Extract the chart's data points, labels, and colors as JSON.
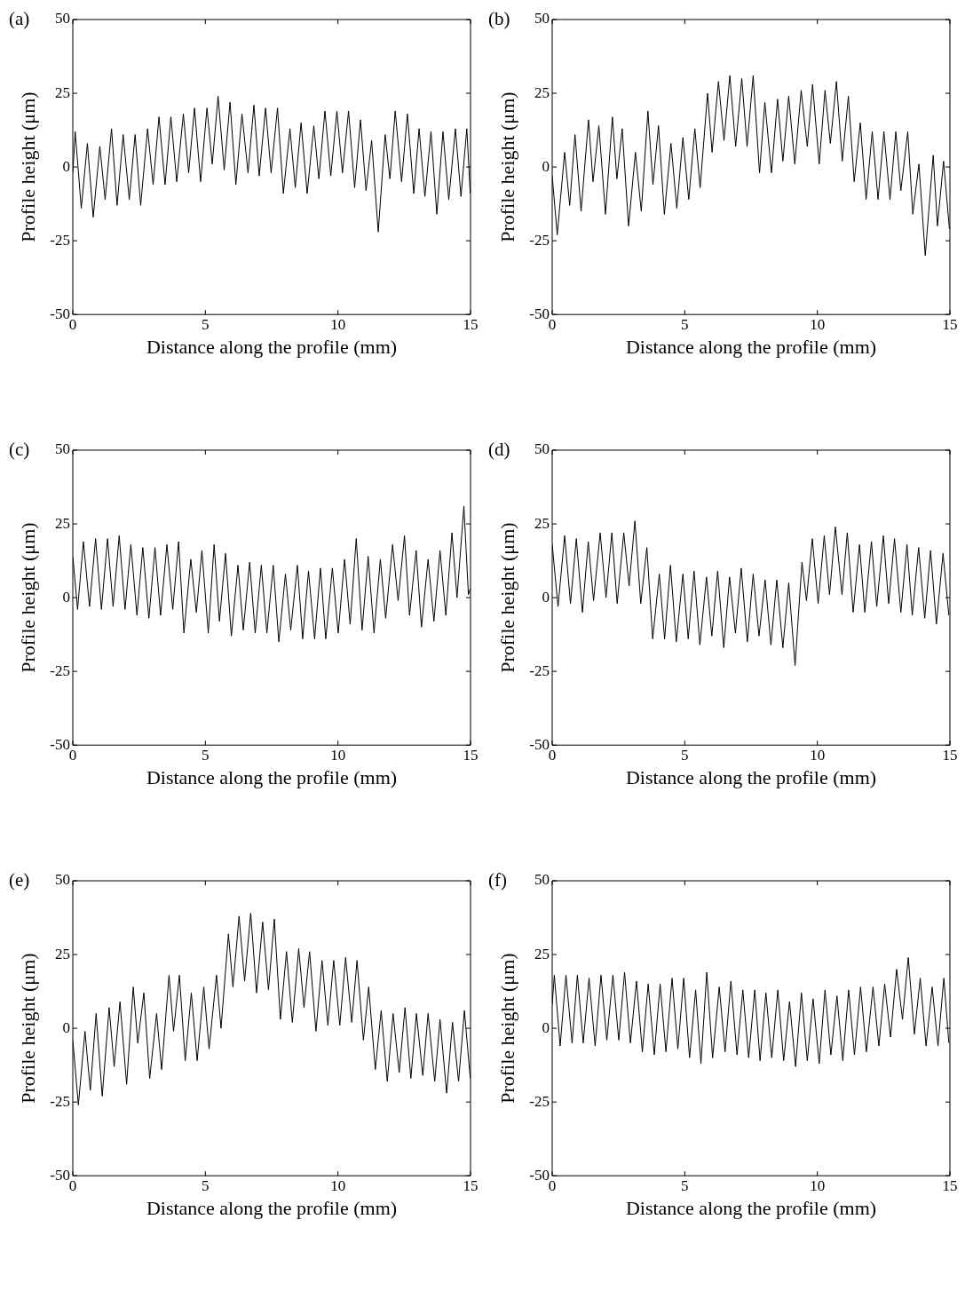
{
  "chart_data": [
    {
      "type": "line",
      "title": "(a)",
      "xlabel": "Distance along the profile (mm)",
      "ylabel": "Profile height (μm)",
      "color": "#000000",
      "xlim": [
        0,
        15
      ],
      "ylim": [
        -50,
        50
      ],
      "xticks": [
        0,
        5,
        10,
        15
      ],
      "yticks": [
        -50,
        -25,
        0,
        25,
        50
      ],
      "x": [
        0,
        0.09,
        0.32,
        0.55,
        0.77,
        1.02,
        1.22,
        1.46,
        1.67,
        1.9,
        2.13,
        2.35,
        2.56,
        2.82,
        3.03,
        3.25,
        3.48,
        3.7,
        3.92,
        4.17,
        4.37,
        4.59,
        4.82,
        5.06,
        5.26,
        5.48,
        5.71,
        5.93,
        6.15,
        6.38,
        6.61,
        6.83,
        7.03,
        7.27,
        7.48,
        7.72,
        7.94,
        8.19,
        8.39,
        8.61,
        8.84,
        9.09,
        9.28,
        9.51,
        9.73,
        9.96,
        10.17,
        10.4,
        10.63,
        10.85,
        11.06,
        11.27,
        11.52,
        11.78,
        11.96,
        12.16,
        12.4,
        12.62,
        12.86,
        13.06,
        13.28,
        13.51,
        13.73,
        13.96,
        14.18,
        14.43,
        14.64,
        14.86,
        14.99
      ],
      "values": [
        -2,
        12,
        -14,
        8,
        -17,
        7,
        -11,
        13,
        -13,
        11,
        -11,
        11,
        -13,
        13,
        -6,
        17,
        -6,
        17,
        -5,
        18,
        -2,
        20,
        -5,
        20,
        1,
        24,
        -1,
        22,
        -6,
        18,
        -2,
        21,
        -3,
        20,
        -2,
        20,
        -9,
        13,
        -7,
        15,
        -9,
        14,
        -4,
        19,
        -3,
        19,
        -2,
        19,
        -7,
        16,
        -8,
        9,
        -22,
        11,
        -4,
        19,
        -5,
        18,
        -9,
        13,
        -10,
        12,
        -16,
        12,
        -11,
        13,
        -10,
        13,
        -9
      ]
    },
    {
      "type": "line",
      "title": "(b)",
      "xlabel": "Distance along the profile (mm)",
      "ylabel": "Profile height (μm)",
      "color": "#000000",
      "xlim": [
        0,
        15
      ],
      "ylim": [
        -50,
        50
      ],
      "xticks": [
        0,
        5,
        10,
        15
      ],
      "yticks": [
        -50,
        -25,
        0,
        25,
        50
      ],
      "x": [
        0,
        0.19,
        0.47,
        0.66,
        0.86,
        1.09,
        1.37,
        1.54,
        1.76,
        2.01,
        2.27,
        2.44,
        2.64,
        2.88,
        3.14,
        3.36,
        3.61,
        3.8,
        4.01,
        4.23,
        4.48,
        4.7,
        4.93,
        5.15,
        5.38,
        5.58,
        5.86,
        6.03,
        6.27,
        6.48,
        6.7,
        6.92,
        7.15,
        7.35,
        7.58,
        7.82,
        8.02,
        8.27,
        8.5,
        8.7,
        8.92,
        9.15,
        9.39,
        9.62,
        9.82,
        10.07,
        10.29,
        10.49,
        10.72,
        10.94,
        11.17,
        11.39,
        11.62,
        11.84,
        12.07,
        12.29,
        12.51,
        12.74,
        12.96,
        13.15,
        13.41,
        13.6,
        13.83,
        14.07,
        14.37,
        14.53,
        14.76,
        14.98
      ],
      "values": [
        -3,
        -23,
        5,
        -13,
        11,
        -15,
        16,
        -5,
        14,
        -16,
        17,
        -4,
        13,
        -20,
        5,
        -15,
        19,
        -6,
        14,
        -16,
        8,
        -14,
        10,
        -11,
        13,
        -7,
        25,
        5,
        29,
        9,
        31,
        7,
        30,
        7,
        31,
        -2,
        22,
        -2,
        23,
        2,
        24,
        1,
        26,
        7,
        28,
        1,
        26,
        8,
        29,
        2,
        24,
        -5,
        15,
        -11,
        12,
        -11,
        12,
        -11,
        12,
        -8,
        12,
        -16,
        1,
        -30,
        4,
        -20,
        2,
        -21
      ]
    },
    {
      "type": "line",
      "title": "(c)",
      "xlabel": "Distance along the profile (mm)",
      "ylabel": "Profile height (μm)",
      "color": "#000000",
      "xlim": [
        0,
        15
      ],
      "ylim": [
        -50,
        50
      ],
      "xticks": [
        0,
        5,
        10,
        15
      ],
      "yticks": [
        -50,
        -25,
        0,
        25,
        50
      ],
      "x": [
        0,
        0.18,
        0.4,
        0.63,
        0.86,
        1.08,
        1.31,
        1.52,
        1.75,
        1.97,
        2.19,
        2.42,
        2.64,
        2.87,
        3.1,
        3.31,
        3.55,
        3.77,
        3.99,
        4.19,
        4.45,
        4.66,
        4.87,
        5.11,
        5.33,
        5.53,
        5.76,
        5.98,
        6.23,
        6.43,
        6.67,
        6.88,
        7.11,
        7.32,
        7.56,
        7.77,
        8.02,
        8.22,
        8.47,
        8.67,
        8.89,
        9.12,
        9.34,
        9.54,
        9.79,
        10.01,
        10.25,
        10.46,
        10.69,
        10.91,
        11.14,
        11.36,
        11.6,
        11.8,
        12.06,
        12.27,
        12.51,
        12.7,
        12.95,
        13.15,
        13.4,
        13.62,
        13.85,
        14.07,
        14.3,
        14.49,
        14.75,
        14.92,
        14.99
      ],
      "values": [
        14,
        -4,
        19,
        -3,
        20,
        -4,
        20,
        -3,
        21,
        -4,
        18,
        -6,
        17,
        -7,
        17,
        -6,
        18,
        -4,
        19,
        -12,
        13,
        -5,
        16,
        -12,
        18,
        -8,
        15,
        -13,
        11,
        -11,
        12,
        -12,
        11,
        -12,
        11,
        -15,
        8,
        -11,
        11,
        -14,
        9,
        -14,
        10,
        -14,
        10,
        -12,
        13,
        -9,
        20,
        -11,
        14,
        -12,
        13,
        -7,
        18,
        -1,
        21,
        -6,
        16,
        -10,
        13,
        -8,
        16,
        -6,
        22,
        0,
        31,
        1,
        3
      ]
    },
    {
      "type": "line",
      "title": "(d)",
      "xlabel": "Distance along the profile (mm)",
      "ylabel": "Profile height (μm)",
      "color": "#000000",
      "xlim": [
        0,
        15
      ],
      "ylim": [
        -50,
        50
      ],
      "xticks": [
        0,
        5,
        10,
        15
      ],
      "yticks": [
        -50,
        -25,
        0,
        25,
        50
      ],
      "x": [
        0,
        0.22,
        0.47,
        0.69,
        0.91,
        1.14,
        1.36,
        1.56,
        1.81,
        2.03,
        2.25,
        2.45,
        2.7,
        2.9,
        3.12,
        3.34,
        3.57,
        3.79,
        4.04,
        4.24,
        4.46,
        4.68,
        4.93,
        5.13,
        5.35,
        5.57,
        5.82,
        6.02,
        6.24,
        6.47,
        6.69,
        6.91,
        7.13,
        7.36,
        7.58,
        7.8,
        8.03,
        8.25,
        8.47,
        8.7,
        8.92,
        9.16,
        9.42,
        9.59,
        9.81,
        10.03,
        10.26,
        10.46,
        10.68,
        10.93,
        11.13,
        11.35,
        11.59,
        11.79,
        12.04,
        12.24,
        12.49,
        12.69,
        12.91,
        13.15,
        13.38,
        13.58,
        13.82,
        14.05,
        14.27,
        14.49,
        14.74,
        14.96
      ],
      "values": [
        18,
        -3,
        21,
        -2,
        20,
        -5,
        19,
        -1,
        22,
        0,
        22,
        -2,
        22,
        4,
        26,
        -2,
        17,
        -14,
        8,
        -14,
        11,
        -15,
        8,
        -14,
        9,
        -16,
        7,
        -13,
        9,
        -17,
        7,
        -12,
        10,
        -15,
        8,
        -13,
        6,
        -16,
        6,
        -17,
        5,
        -23,
        12,
        -1,
        20,
        -2,
        21,
        1,
        24,
        1,
        22,
        -5,
        18,
        -5,
        19,
        -3,
        21,
        -2,
        20,
        -5,
        18,
        -6,
        17,
        -7,
        16,
        -9,
        15,
        -6
      ]
    },
    {
      "type": "line",
      "title": "(e)",
      "xlabel": "Distance along the profile (mm)",
      "ylabel": "Profile height (μm)",
      "color": "#000000",
      "xlim": [
        0,
        15
      ],
      "ylim": [
        -50,
        50
      ],
      "xticks": [
        0,
        5,
        10,
        15
      ],
      "yticks": [
        -50,
        -25,
        0,
        25,
        50
      ],
      "x": [
        0,
        0.21,
        0.46,
        0.66,
        0.88,
        1.11,
        1.37,
        1.56,
        1.78,
        2.03,
        2.28,
        2.45,
        2.68,
        2.9,
        3.16,
        3.35,
        3.63,
        3.8,
        4.02,
        4.24,
        4.47,
        4.69,
        4.94,
        5.14,
        5.42,
        5.59,
        5.87,
        6.04,
        6.27,
        6.48,
        6.71,
        6.93,
        7.16,
        7.38,
        7.6,
        7.83,
        8.06,
        8.28,
        8.52,
        8.72,
        8.93,
        9.17,
        9.4,
        9.62,
        9.84,
        10.07,
        10.29,
        10.52,
        10.72,
        10.96,
        11.16,
        11.41,
        11.63,
        11.86,
        12.08,
        12.31,
        12.53,
        12.75,
        12.96,
        13.2,
        13.4,
        13.65,
        13.85,
        14.1,
        14.32,
        14.55,
        14.77,
        14.99
      ],
      "values": [
        -4,
        -26,
        -1,
        -21,
        5,
        -23,
        7,
        -13,
        9,
        -19,
        14,
        -5,
        12,
        -17,
        5,
        -14,
        18,
        -1,
        18,
        -11,
        12,
        -11,
        14,
        -7,
        18,
        0,
        32,
        14,
        38,
        16,
        39,
        12,
        36,
        13,
        37,
        3,
        26,
        2,
        27,
        7,
        26,
        -1,
        23,
        1,
        23,
        1,
        24,
        2,
        23,
        -4,
        14,
        -14,
        6,
        -18,
        5,
        -15,
        7,
        -17,
        5,
        -16,
        5,
        -18,
        3,
        -22,
        2,
        -18,
        6,
        -17
      ]
    },
    {
      "type": "line",
      "title": "(f)",
      "xlabel": "Distance along the profile (mm)",
      "ylabel": "Profile height (μm)",
      "color": "#000000",
      "xlim": [
        0,
        15
      ],
      "ylim": [
        -50,
        50
      ],
      "xticks": [
        0,
        5,
        10,
        15
      ],
      "yticks": [
        -50,
        -25,
        0,
        25,
        50
      ],
      "x": [
        0,
        0.08,
        0.3,
        0.52,
        0.75,
        0.95,
        1.17,
        1.39,
        1.62,
        1.84,
        2.06,
        2.29,
        2.51,
        2.73,
        2.95,
        3.18,
        3.4,
        3.62,
        3.85,
        4.07,
        4.29,
        4.52,
        4.74,
        4.96,
        5.18,
        5.41,
        5.61,
        5.83,
        6.05,
        6.3,
        6.52,
        6.74,
        6.97,
        7.19,
        7.41,
        7.64,
        7.84,
        8.06,
        8.28,
        8.51,
        8.73,
        8.95,
        9.18,
        9.4,
        9.62,
        9.84,
        10.07,
        10.29,
        10.51,
        10.74,
        10.96,
        11.18,
        11.4,
        11.63,
        11.85,
        12.1,
        12.32,
        12.54,
        12.76,
        12.99,
        13.21,
        13.43,
        13.66,
        13.88,
        14.1,
        14.33,
        14.55,
        14.77,
        14.96
      ],
      "values": [
        8,
        18,
        -6,
        18,
        -5,
        18,
        -5,
        17,
        -6,
        18,
        -4,
        18,
        -4,
        19,
        -5,
        16,
        -8,
        15,
        -9,
        15,
        -8,
        17,
        -7,
        17,
        -10,
        13,
        -12,
        19,
        -10,
        14,
        -8,
        16,
        -9,
        13,
        -10,
        13,
        -11,
        12,
        -10,
        13,
        -11,
        9,
        -13,
        12,
        -11,
        10,
        -12,
        13,
        -9,
        11,
        -11,
        13,
        -9,
        14,
        -8,
        14,
        -6,
        15,
        -3,
        20,
        3,
        24,
        -2,
        17,
        -6,
        14,
        -6,
        17,
        -5
      ]
    }
  ]
}
